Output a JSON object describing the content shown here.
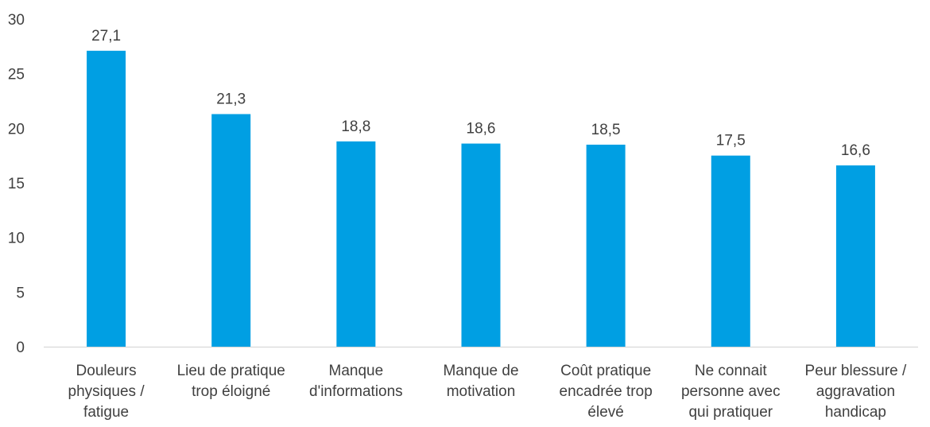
{
  "chart_data": {
    "type": "bar",
    "categories": [
      [
        "Douleurs",
        "physiques /",
        "fatigue"
      ],
      [
        "Lieu de pratique",
        "trop éloigné"
      ],
      [
        "Manque",
        "d'informations"
      ],
      [
        "Manque de",
        "motivation"
      ],
      [
        "Coût pratique",
        "encadrée trop",
        "élevé"
      ],
      [
        "Ne connait",
        "personne avec",
        "qui pratiquer"
      ],
      [
        "Peur blessure /",
        "aggravation",
        "handicap"
      ]
    ],
    "values": [
      27.1,
      21.3,
      18.8,
      18.6,
      18.5,
      17.5,
      16.6
    ],
    "value_labels": [
      "27,1",
      "21,3",
      "18,8",
      "18,6",
      "18,5",
      "17,5",
      "16,6"
    ],
    "y_ticks": [
      "0",
      "5",
      "10",
      "15",
      "20",
      "25",
      "30"
    ],
    "ylim": [
      0,
      30
    ],
    "grid": false,
    "bar_color": "#009FE3",
    "axis_color": "#D9D9D9"
  }
}
